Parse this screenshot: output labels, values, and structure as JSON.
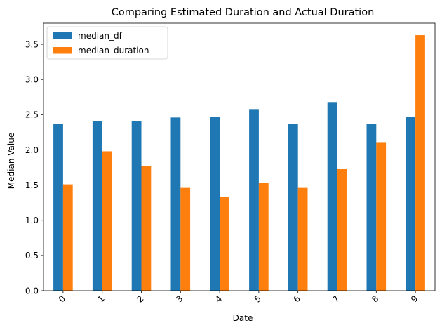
{
  "chart_data": {
    "type": "bar",
    "title": "Comparing Estimated Duration and Actual Duration",
    "xlabel": "Date",
    "ylabel": "Median Value",
    "categories": [
      "0",
      "1",
      "2",
      "3",
      "4",
      "5",
      "6",
      "7",
      "8",
      "9"
    ],
    "series": [
      {
        "name": "median_df",
        "color": "#1f77b4",
        "values": [
          2.37,
          2.41,
          2.41,
          2.46,
          2.47,
          2.58,
          2.37,
          2.68,
          2.37,
          2.47
        ]
      },
      {
        "name": "median_duration",
        "color": "#ff7f0e",
        "values": [
          1.51,
          1.98,
          1.77,
          1.46,
          1.33,
          1.53,
          1.46,
          1.73,
          2.11,
          3.63
        ]
      }
    ],
    "ylim": [
      0,
      3.8
    ],
    "yticks": [
      0.0,
      0.5,
      1.0,
      1.5,
      2.0,
      2.5,
      3.0,
      3.5
    ],
    "ytick_labels": [
      "0.0",
      "0.5",
      "1.0",
      "1.5",
      "2.0",
      "2.5",
      "3.0",
      "3.5"
    ],
    "grid": false,
    "legend_position": "top-left",
    "xtick_rotation_deg": 45
  }
}
